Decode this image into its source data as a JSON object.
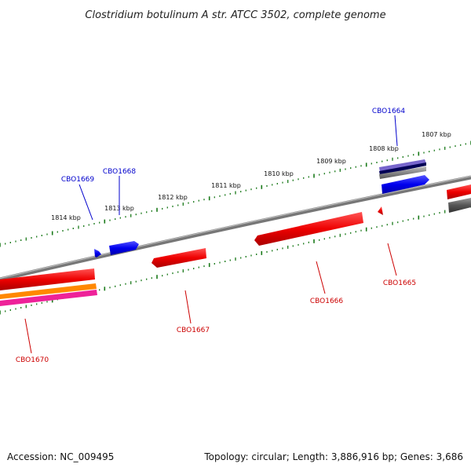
{
  "title": "Clostridium botulinum A str. ATCC 3502, complete genome",
  "footer": {
    "accession": "Accession: NC_009495",
    "topology": "Topology: circular; Length: 3,886,916 bp; Genes: 3,686"
  },
  "scale": {
    "ticks": [
      "1814 kbp",
      "1813 kbp",
      "1812 kbp",
      "1811 kbp",
      "1810 kbp",
      "1809 kbp",
      "1808 kbp",
      "1807 kbp"
    ]
  },
  "genes": {
    "forward_labels": [
      "CBO1669",
      "CBO1668",
      "CBO1664"
    ],
    "reverse_labels": [
      "CBO1670",
      "CBO1667",
      "CBO1666",
      "CBO1665"
    ]
  },
  "colors": {
    "forward": "#0000ee",
    "reverse": "#dd0000",
    "backbone": "#888888",
    "ruler": "#1a7a1a",
    "orange_track": "#ff8800",
    "pink_track": "#ee2299",
    "purple_track": "#6655cc",
    "navy_track": "#000066"
  }
}
